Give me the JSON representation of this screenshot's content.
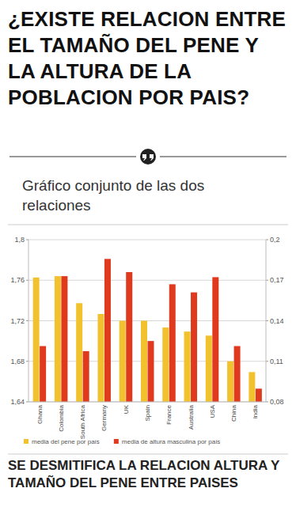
{
  "chart_data": {
    "type": "bar",
    "title": "¿EXISTE RELACION ENTRE EL TAMAÑO DEL PENE Y LA ALTURA DE LA POBLACION POR PAIS?",
    "subtitle": "Gráfico conjunto de las dos relaciones",
    "annotations": [
      "SE DESMITIFICA LA RELACION ALTURA Y TAMAÑO DEL PENE ENTRE PAISES"
    ],
    "categories": [
      "Ghana",
      "Colombia",
      "South Africa",
      "Germany",
      "UK",
      "Spain",
      "France",
      "Australia",
      "USA",
      "China",
      "India"
    ],
    "series": [
      {
        "name": "media del pene por país",
        "color": "#f2c12e",
        "axis": "y2",
        "values": [
          0.172,
          0.173,
          0.153,
          0.145,
          0.14,
          0.14,
          0.135,
          0.132,
          0.129,
          0.11,
          0.102
        ]
      },
      {
        "name": "media de altura masculina por país",
        "color": "#e03a1e",
        "values": [
          1.695,
          1.764,
          1.69,
          1.781,
          1.768,
          1.7,
          1.756,
          1.748,
          1.763,
          1.695,
          1.653
        ]
      }
    ],
    "ylim": [
      1.64,
      1.8
    ],
    "yticks": [
      {
        "value": 1.64,
        "label": "1,64"
      },
      {
        "value": 1.68,
        "label": "1,68"
      },
      {
        "value": 1.72,
        "label": "1,72"
      },
      {
        "value": 1.76,
        "label": "1,76"
      },
      {
        "value": 1.8,
        "label": "1,8"
      }
    ],
    "y2lim": [
      0.08,
      0.2
    ],
    "y2ticks": [
      {
        "value": 0.08,
        "label": "0,08"
      },
      {
        "value": 0.11,
        "label": "0,11"
      },
      {
        "value": 0.14,
        "label": "0,14"
      },
      {
        "value": 0.17,
        "label": "0,17"
      },
      {
        "value": 0.2,
        "label": "0,2"
      }
    ],
    "grid": true,
    "legend": "bottom"
  }
}
